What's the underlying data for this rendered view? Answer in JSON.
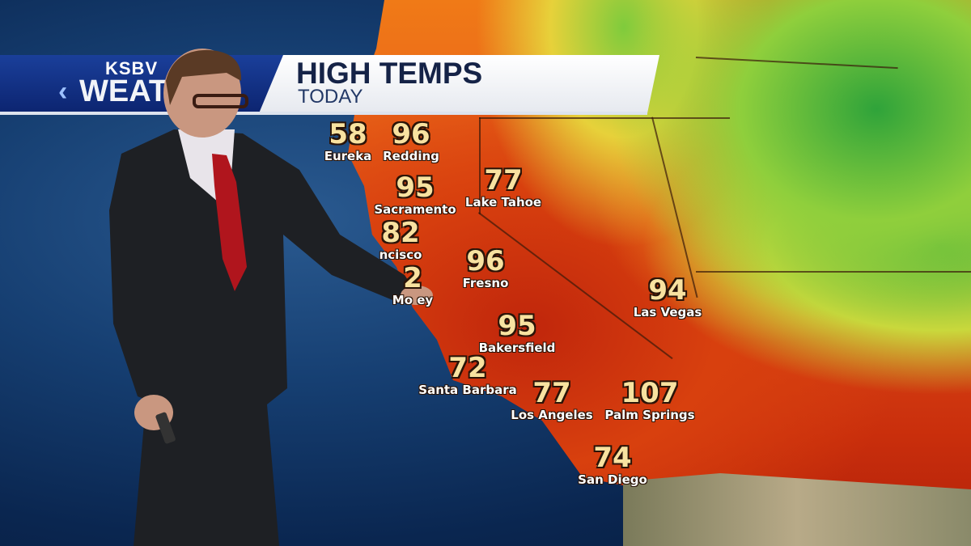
{
  "broadcast": {
    "station": "KSBV",
    "brand_partial": "WEAT",
    "title": "HIGH TEMPS",
    "subtitle": "TODAY",
    "accent_color": "#0c2470"
  },
  "map": {
    "type": "temperature heat map",
    "cities": [
      {
        "name": "Eureka",
        "temp": "58"
      },
      {
        "name": "Redding",
        "temp": "96"
      },
      {
        "name": "Sacramento",
        "temp": "95"
      },
      {
        "name": "Lake Tahoe",
        "temp": "77"
      },
      {
        "name": "ncisco",
        "temp": "82"
      },
      {
        "name": "Fresno",
        "temp": "96"
      },
      {
        "name": "Mo      ey",
        "temp": "2"
      },
      {
        "name": "Las Vegas",
        "temp": "94"
      },
      {
        "name": "Bakersfield",
        "temp": "95"
      },
      {
        "name": "Santa Barbara",
        "temp": "72"
      },
      {
        "name": "Los Angeles",
        "temp": "77"
      },
      {
        "name": "Palm Springs",
        "temp": "107"
      },
      {
        "name": "San Diego",
        "temp": "74"
      }
    ],
    "colors": {
      "hot": "#c92e0c",
      "warm": "#f07a17",
      "mild": "#e7d13a",
      "cool": "#2fa33a",
      "ocean": "#163f72"
    }
  }
}
